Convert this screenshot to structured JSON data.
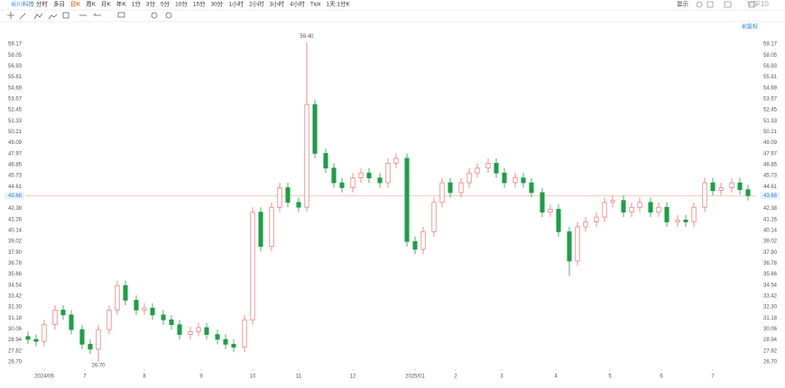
{
  "toolbar": {
    "symbol": "长川科技",
    "periods": [
      "分时",
      "多日",
      "日K",
      "周K",
      "月K",
      "年K",
      "1分",
      "3分",
      "5分",
      "10分",
      "15分",
      "30分",
      "1小时",
      "2小时",
      "3小时",
      "4小时",
      "Tick",
      "1天:1分K"
    ],
    "selected": 2,
    "right": [
      "显示",
      "VS",
      "F10"
    ]
  },
  "chart_data": {
    "type": "candlestick",
    "adjustment": "前复权",
    "x": [
      1,
      4,
      7,
      11,
      14,
      17,
      21,
      24,
      27,
      31,
      34,
      37,
      41,
      44,
      47,
      51,
      54,
      57,
      61,
      64,
      67,
      71,
      74,
      77,
      81,
      84,
      87,
      91,
      94,
      97,
      101,
      104,
      107,
      111,
      114,
      117,
      121,
      124,
      127,
      131,
      134,
      137,
      141,
      144,
      147,
      151,
      154,
      157,
      161,
      164,
      167,
      171,
      174,
      177,
      181,
      184,
      187,
      191,
      194,
      197,
      201,
      204,
      207,
      211,
      214,
      217,
      221,
      224,
      227,
      231,
      234,
      237,
      241,
      244,
      247,
      251,
      254,
      257,
      261,
      264,
      267
    ],
    "open": [
      29.3,
      29.0,
      28.8,
      30.5,
      32.0,
      31.5,
      30.0,
      28.5,
      28.0,
      30.0,
      32.0,
      34.5,
      33.0,
      32.0,
      32.2,
      31.5,
      31.0,
      30.5,
      29.5,
      29.8,
      30.2,
      29.5,
      29.0,
      28.5,
      28.2,
      31.0,
      42.0,
      38.5,
      42.5,
      44.5,
      43.0,
      42.5,
      53.0,
      48.0,
      46.5,
      45.0,
      44.5,
      45.5,
      46.0,
      45.5,
      45.0,
      47.0,
      47.5,
      39.0,
      38.2,
      40.0,
      43.0,
      45.0,
      44.0,
      45.0,
      46.0,
      46.5,
      47.0,
      46.0,
      45.0,
      45.5,
      45.0,
      44.0,
      42.0,
      42.3,
      40.0,
      37.0,
      40.5,
      41.0,
      41.5,
      43.0,
      43.2,
      42.0,
      42.5,
      43.0,
      42.0,
      42.5,
      41.0,
      41.2,
      41.0,
      42.5,
      45.0,
      44.2,
      44.5,
      45.0,
      44.3
    ],
    "high": [
      29.8,
      29.5,
      31.0,
      32.5,
      32.5,
      32.0,
      30.5,
      29.0,
      30.5,
      32.5,
      35.0,
      35.0,
      33.5,
      32.7,
      32.7,
      32.0,
      31.5,
      31.0,
      30.3,
      30.7,
      30.7,
      30.0,
      29.5,
      29.0,
      31.5,
      42.5,
      42.5,
      43.0,
      45.0,
      45.0,
      43.5,
      59.4,
      53.5,
      48.5,
      47.0,
      45.5,
      46.0,
      46.5,
      46.5,
      46.0,
      47.5,
      48.0,
      48.0,
      39.5,
      40.5,
      43.5,
      45.5,
      45.5,
      45.5,
      46.5,
      47.0,
      47.5,
      47.5,
      46.5,
      46.0,
      46.0,
      45.5,
      44.5,
      42.8,
      42.8,
      40.5,
      41.0,
      41.5,
      42.0,
      43.5,
      43.7,
      43.7,
      43.0,
      43.5,
      43.5,
      43.0,
      43.0,
      41.7,
      41.7,
      43.0,
      45.5,
      45.5,
      45.0,
      45.5,
      45.5,
      44.8
    ],
    "low": [
      28.5,
      28.3,
      28.3,
      30.0,
      31.0,
      29.5,
      28.0,
      27.5,
      26.7,
      29.5,
      31.5,
      32.5,
      31.5,
      31.5,
      31.0,
      30.5,
      30.0,
      29.0,
      29.0,
      29.3,
      29.0,
      28.5,
      28.0,
      27.7,
      27.7,
      30.5,
      38.0,
      38.0,
      42.0,
      42.5,
      42.0,
      42.0,
      47.5,
      46.0,
      44.5,
      44.0,
      44.0,
      45.0,
      45.0,
      44.5,
      44.5,
      46.5,
      38.5,
      37.7,
      37.7,
      39.5,
      42.5,
      43.5,
      43.5,
      44.5,
      45.5,
      46.0,
      45.5,
      44.5,
      44.5,
      44.5,
      43.5,
      41.5,
      41.5,
      39.5,
      35.5,
      36.5,
      40.0,
      40.5,
      41.0,
      42.5,
      41.5,
      41.5,
      42.0,
      41.5,
      41.5,
      40.5,
      40.5,
      40.5,
      40.5,
      42.0,
      43.7,
      43.7,
      44.0,
      43.8,
      43.2
    ],
    "close": [
      29.0,
      28.8,
      30.5,
      32.0,
      31.5,
      30.0,
      28.5,
      28.0,
      30.0,
      32.0,
      34.5,
      33.0,
      32.0,
      32.2,
      31.5,
      31.0,
      30.5,
      29.5,
      29.8,
      30.2,
      29.5,
      29.0,
      28.5,
      28.2,
      31.0,
      42.0,
      38.5,
      42.5,
      44.5,
      43.0,
      42.5,
      53.0,
      48.0,
      46.5,
      45.0,
      44.5,
      45.5,
      46.0,
      45.5,
      45.0,
      47.0,
      47.5,
      39.0,
      38.2,
      40.0,
      43.0,
      45.0,
      44.0,
      45.0,
      46.0,
      46.5,
      47.0,
      46.0,
      45.0,
      45.5,
      45.0,
      44.0,
      42.0,
      42.3,
      40.0,
      37.0,
      40.5,
      41.0,
      41.5,
      43.0,
      43.2,
      42.0,
      42.5,
      43.0,
      42.0,
      42.5,
      41.0,
      41.2,
      41.0,
      42.5,
      45.0,
      44.2,
      44.5,
      45.0,
      44.3,
      43.68
    ],
    "up_color": "#f07070",
    "down_color": "#1e9e48",
    "xlim": [
      0,
      270
    ],
    "xticks": [
      {
        "value": 7,
        "label": "2024/06"
      },
      {
        "value": 22,
        "label": "7"
      },
      {
        "value": 44,
        "label": "8"
      },
      {
        "value": 65,
        "label": "9"
      },
      {
        "value": 84,
        "label": "10"
      },
      {
        "value": 101,
        "label": "11"
      },
      {
        "value": 121,
        "label": "12"
      },
      {
        "value": 144,
        "label": "2025/01"
      },
      {
        "value": 159,
        "label": "2"
      },
      {
        "value": 176,
        "label": "3"
      },
      {
        "value": 196,
        "label": "4"
      },
      {
        "value": 216,
        "label": "5"
      },
      {
        "value": 235,
        "label": "6"
      },
      {
        "value": 254,
        "label": "7"
      }
    ],
    "ylim": [
      26.7,
      59.17
    ],
    "yticks": [
      59.17,
      58.05,
      56.93,
      55.81,
      54.69,
      53.57,
      52.45,
      51.33,
      {
        "value": 50.21,
        "label": "50.21"
      },
      49.09,
      47.97,
      46.85,
      45.73,
      44.61,
      42.38,
      41.26,
      40.14,
      39.02,
      {
        "value": 37.9,
        "label": "37.90"
      },
      36.78,
      35.66,
      34.54,
      33.42,
      {
        "value": 32.3,
        "label": "32.30"
      },
      31.18,
      30.06,
      28.94,
      27.82,
      {
        "value": 26.7,
        "label": "26.70"
      }
    ],
    "grid": false,
    "last_price": 43.68,
    "max_mark": {
      "index": 31,
      "value": 59.4,
      "label": "59.40"
    },
    "min_mark": {
      "index": 8,
      "value": 26.7,
      "label": "26.70"
    }
  }
}
